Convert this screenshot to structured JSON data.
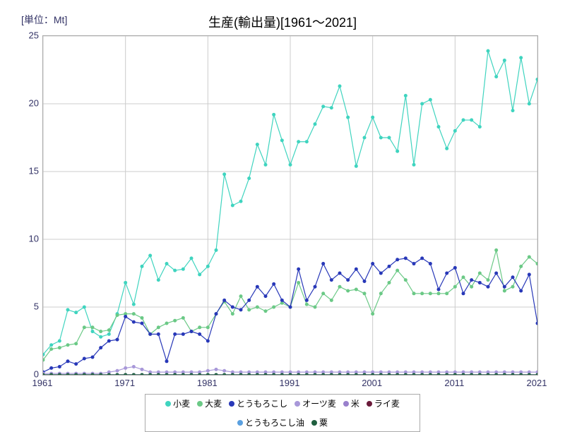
{
  "unit_label": "[単位：Mt]",
  "title": "生産(輸出量)[1961～2021]",
  "chart": {
    "type": "line",
    "background_color": "#ffffff",
    "grid_color": "#cccccc",
    "axis_color": "#aaaaaa",
    "text_color": "#333366",
    "title_fontsize": 18,
    "label_fontsize": 13,
    "legend_fontsize": 12,
    "xlim": [
      1961,
      2021
    ],
    "ylim": [
      0,
      25
    ],
    "xticks": [
      1961,
      1971,
      1981,
      1991,
      2001,
      2011,
      2021
    ],
    "yticks": [
      0,
      5,
      10,
      15,
      20,
      25
    ],
    "line_width": 1.2,
    "marker_size": 2.5,
    "series": [
      {
        "name": "小麦",
        "color": "#3fd4bf",
        "x": [
          1961,
          1962,
          1963,
          1964,
          1965,
          1966,
          1967,
          1968,
          1969,
          1970,
          1971,
          1972,
          1973,
          1974,
          1975,
          1976,
          1977,
          1978,
          1979,
          1980,
          1981,
          1982,
          1983,
          1984,
          1985,
          1986,
          1987,
          1988,
          1989,
          1990,
          1991,
          1992,
          1993,
          1994,
          1995,
          1996,
          1997,
          1998,
          1999,
          2000,
          2001,
          2002,
          2003,
          2004,
          2005,
          2006,
          2007,
          2008,
          2009,
          2010,
          2011,
          2012,
          2013,
          2014,
          2015,
          2016,
          2017,
          2018,
          2019,
          2020,
          2021
        ],
        "y": [
          1.5,
          2.2,
          2.5,
          4.8,
          4.6,
          5.0,
          3.2,
          2.8,
          3.0,
          4.5,
          6.8,
          5.2,
          8.0,
          8.8,
          7.0,
          8.2,
          7.7,
          7.8,
          8.6,
          7.4,
          8.0,
          9.2,
          14.8,
          12.5,
          12.8,
          14.5,
          17.0,
          15.5,
          19.2,
          17.3,
          15.5,
          17.2,
          17.2,
          18.5,
          19.8,
          19.7,
          21.3,
          19.0,
          15.4,
          17.5,
          19.0,
          17.5,
          17.5,
          16.5,
          20.6,
          15.5,
          20.0,
          20.3,
          18.3,
          16.7,
          18.0,
          18.8,
          18.8,
          18.3,
          23.9,
          22.0,
          23.2,
          19.5,
          23.4,
          20.0,
          21.8
        ]
      },
      {
        "name": "大麦",
        "color": "#6bc986",
        "x": [
          1961,
          1962,
          1963,
          1964,
          1965,
          1966,
          1967,
          1968,
          1969,
          1970,
          1971,
          1972,
          1973,
          1974,
          1975,
          1976,
          1977,
          1978,
          1979,
          1980,
          1981,
          1982,
          1983,
          1984,
          1985,
          1986,
          1987,
          1988,
          1989,
          1990,
          1991,
          1992,
          1993,
          1994,
          1995,
          1996,
          1997,
          1998,
          1999,
          2000,
          2001,
          2002,
          2003,
          2004,
          2005,
          2006,
          2007,
          2008,
          2009,
          2010,
          2011,
          2012,
          2013,
          2014,
          2015,
          2016,
          2017,
          2018,
          2019,
          2020,
          2021
        ],
        "y": [
          1.1,
          1.9,
          2.0,
          2.2,
          2.3,
          3.5,
          3.5,
          3.2,
          3.3,
          4.4,
          4.5,
          4.5,
          4.2,
          3.0,
          3.5,
          3.8,
          4.0,
          4.2,
          3.2,
          3.5,
          3.5,
          4.5,
          5.4,
          4.5,
          5.8,
          4.8,
          5.0,
          4.7,
          5.0,
          5.3,
          5.0,
          6.8,
          5.2,
          5.0,
          6.0,
          5.5,
          6.5,
          6.2,
          6.3,
          6.0,
          4.5,
          6.0,
          6.8,
          7.7,
          7.0,
          6.0,
          6.0,
          6.0,
          6.0,
          6.0,
          6.5,
          7.2,
          6.5,
          7.5,
          7.0,
          9.2,
          6.2,
          6.5,
          8.0,
          8.7,
          8.2
        ]
      },
      {
        "name": "とうもろこし",
        "color": "#2838b8",
        "x": [
          1961,
          1962,
          1963,
          1964,
          1965,
          1966,
          1967,
          1968,
          1969,
          1970,
          1971,
          1972,
          1973,
          1974,
          1975,
          1976,
          1977,
          1978,
          1979,
          1980,
          1981,
          1982,
          1983,
          1984,
          1985,
          1986,
          1987,
          1988,
          1989,
          1990,
          1991,
          1992,
          1993,
          1994,
          1995,
          1996,
          1997,
          1998,
          1999,
          2000,
          2001,
          2002,
          2003,
          2004,
          2005,
          2006,
          2007,
          2008,
          2009,
          2010,
          2011,
          2012,
          2013,
          2014,
          2015,
          2016,
          2017,
          2018,
          2019,
          2020,
          2021
        ],
        "y": [
          0.2,
          0.5,
          0.6,
          1.0,
          0.8,
          1.2,
          1.3,
          2.0,
          2.5,
          2.6,
          4.3,
          3.9,
          3.8,
          3.0,
          3.0,
          1.0,
          3.0,
          3.0,
          3.2,
          3.0,
          2.5,
          4.5,
          5.5,
          5.0,
          4.8,
          5.5,
          6.5,
          5.8,
          6.7,
          5.5,
          5.0,
          7.8,
          5.5,
          6.5,
          8.2,
          7.0,
          7.5,
          7.0,
          7.8,
          6.9,
          8.2,
          7.5,
          8.0,
          8.5,
          8.6,
          8.2,
          8.6,
          8.2,
          6.3,
          7.5,
          7.9,
          6.0,
          7.0,
          6.8,
          6.5,
          7.5,
          6.5,
          7.2,
          6.2,
          7.4,
          3.8
        ]
      },
      {
        "name": "オーツ麦",
        "color": "#a898d9",
        "x": [
          1961,
          1962,
          1963,
          1964,
          1965,
          1966,
          1967,
          1968,
          1969,
          1970,
          1971,
          1972,
          1973,
          1974,
          1975,
          1976,
          1977,
          1978,
          1979,
          1980,
          1981,
          1982,
          1983,
          1984,
          1985,
          1986,
          1987,
          1988,
          1989,
          1990,
          1991,
          1992,
          1993,
          1994,
          1995,
          1996,
          1997,
          1998,
          1999,
          2000,
          2001,
          2002,
          2003,
          2004,
          2005,
          2006,
          2007,
          2008,
          2009,
          2010,
          2011,
          2012,
          2013,
          2014,
          2015,
          2016,
          2017,
          2018,
          2019,
          2020,
          2021
        ],
        "y": [
          0.1,
          0.1,
          0.1,
          0.1,
          0.1,
          0.1,
          0.1,
          0.1,
          0.2,
          0.3,
          0.5,
          0.6,
          0.4,
          0.2,
          0.2,
          0.2,
          0.2,
          0.2,
          0.2,
          0.2,
          0.3,
          0.4,
          0.3,
          0.2,
          0.2,
          0.2,
          0.2,
          0.2,
          0.2,
          0.2,
          0.2,
          0.2,
          0.2,
          0.2,
          0.2,
          0.2,
          0.2,
          0.2,
          0.2,
          0.2,
          0.2,
          0.2,
          0.2,
          0.2,
          0.2,
          0.2,
          0.2,
          0.2,
          0.2,
          0.2,
          0.2,
          0.2,
          0.2,
          0.2,
          0.2,
          0.2,
          0.2,
          0.2,
          0.2,
          0.2,
          0.2
        ]
      },
      {
        "name": "米",
        "color": "#9980cc",
        "x": [
          1961,
          1962,
          1963,
          1964,
          1965,
          1966,
          1967,
          1968,
          1969,
          1970,
          1971,
          1972,
          1973,
          1974,
          1975,
          1976,
          1977,
          1978,
          1979,
          1980,
          1981,
          1982,
          1983,
          1984,
          1985,
          1986,
          1987,
          1988,
          1989,
          1990,
          1991,
          1992,
          1993,
          1994,
          1995,
          1996,
          1997,
          1998,
          1999,
          2000,
          2001,
          2002,
          2003,
          2004,
          2005,
          2006,
          2007,
          2008,
          2009,
          2010,
          2011,
          2012,
          2013,
          2014,
          2015,
          2016,
          2017,
          2018,
          2019,
          2020,
          2021
        ],
        "y": [
          0,
          0,
          0,
          0,
          0,
          0,
          0,
          0,
          0,
          0,
          0,
          0,
          0,
          0,
          0,
          0,
          0,
          0,
          0,
          0,
          0,
          0,
          0,
          0,
          0,
          0,
          0,
          0,
          0,
          0,
          0,
          0,
          0,
          0,
          0,
          0,
          0,
          0,
          0,
          0,
          0,
          0,
          0,
          0,
          0,
          0,
          0,
          0,
          0,
          0,
          0,
          0,
          0,
          0,
          0,
          0,
          0,
          0,
          0,
          0,
          0
        ]
      },
      {
        "name": "ライ麦",
        "color": "#6a1a3a",
        "x": [
          1961,
          1962,
          1963,
          1964,
          1965,
          1966,
          1967,
          1968,
          1969,
          1970,
          1971,
          1972,
          1973,
          1974,
          1975,
          1976,
          1977,
          1978,
          1979,
          1980,
          1981,
          1982,
          1983,
          1984,
          1985,
          1986,
          1987,
          1988,
          1989,
          1990,
          1991,
          1992,
          1993,
          1994,
          1995,
          1996,
          1997,
          1998,
          1999,
          2000,
          2001,
          2002,
          2003,
          2004,
          2005,
          2006,
          2007,
          2008,
          2009,
          2010,
          2011,
          2012,
          2013,
          2014,
          2015,
          2016,
          2017,
          2018,
          2019,
          2020,
          2021
        ],
        "y": [
          0,
          0,
          0,
          0,
          0,
          0,
          0,
          0,
          0,
          0,
          0,
          0,
          0,
          0,
          0,
          0,
          0,
          0,
          0,
          0,
          0,
          0,
          0,
          0,
          0,
          0,
          0,
          0,
          0,
          0,
          0,
          0,
          0,
          0,
          0,
          0,
          0,
          0,
          0,
          0,
          0,
          0,
          0,
          0,
          0,
          0,
          0,
          0,
          0,
          0,
          0,
          0,
          0,
          0,
          0,
          0,
          0,
          0,
          0,
          0,
          0
        ]
      },
      {
        "name": "とうもろこし油",
        "color": "#5aa0e0",
        "x": [
          1961,
          1962,
          1963,
          1964,
          1965,
          1966,
          1967,
          1968,
          1969,
          1970,
          1971,
          1972,
          1973,
          1974,
          1975,
          1976,
          1977,
          1978,
          1979,
          1980,
          1981,
          1982,
          1983,
          1984,
          1985,
          1986,
          1987,
          1988,
          1989,
          1990,
          1991,
          1992,
          1993,
          1994,
          1995,
          1996,
          1997,
          1998,
          1999,
          2000,
          2001,
          2002,
          2003,
          2004,
          2005,
          2006,
          2007,
          2008,
          2009,
          2010,
          2011,
          2012,
          2013,
          2014,
          2015,
          2016,
          2017,
          2018,
          2019,
          2020,
          2021
        ],
        "y": [
          0,
          0,
          0,
          0,
          0,
          0,
          0,
          0,
          0,
          0,
          0,
          0,
          0,
          0,
          0,
          0,
          0,
          0,
          0,
          0,
          0,
          0,
          0,
          0,
          0,
          0,
          0,
          0,
          0,
          0,
          0,
          0,
          0,
          0,
          0,
          0,
          0,
          0,
          0,
          0,
          0,
          0,
          0,
          0,
          0,
          0,
          0,
          0,
          0,
          0,
          0,
          0,
          0,
          0,
          0,
          0,
          0,
          0,
          0,
          0,
          0
        ]
      },
      {
        "name": "粟",
        "color": "#1f5f3f",
        "x": [
          1961,
          1962,
          1963,
          1964,
          1965,
          1966,
          1967,
          1968,
          1969,
          1970,
          1971,
          1972,
          1973,
          1974,
          1975,
          1976,
          1977,
          1978,
          1979,
          1980,
          1981,
          1982,
          1983,
          1984,
          1985,
          1986,
          1987,
          1988,
          1989,
          1990,
          1991,
          1992,
          1993,
          1994,
          1995,
          1996,
          1997,
          1998,
          1999,
          2000,
          2001,
          2002,
          2003,
          2004,
          2005,
          2006,
          2007,
          2008,
          2009,
          2010,
          2011,
          2012,
          2013,
          2014,
          2015,
          2016,
          2017,
          2018,
          2019,
          2020,
          2021
        ],
        "y": [
          0,
          0,
          0,
          0,
          0,
          0,
          0,
          0,
          0,
          0,
          0,
          0,
          0,
          0,
          0,
          0,
          0,
          0,
          0,
          0,
          0,
          0,
          0,
          0,
          0,
          0,
          0,
          0,
          0,
          0,
          0,
          0,
          0,
          0,
          0,
          0,
          0,
          0,
          0,
          0,
          0,
          0,
          0,
          0,
          0,
          0,
          0,
          0,
          0,
          0,
          0,
          0,
          0,
          0,
          0,
          0,
          0,
          0,
          0,
          0,
          0
        ]
      }
    ]
  }
}
